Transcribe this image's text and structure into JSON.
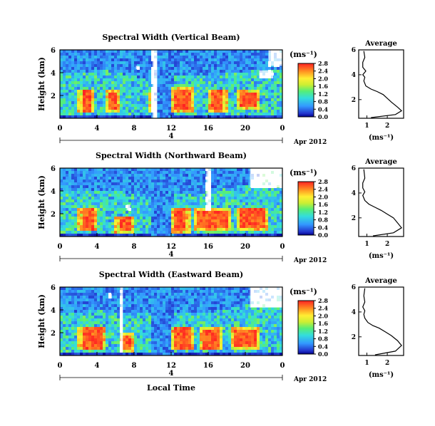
{
  "chart_data": [
    {
      "type": "heatmap",
      "title": "Spectral Width (Vertical Beam)",
      "ylabel": "Height (km)",
      "ylim": [
        0,
        6
      ],
      "xlim": [
        0,
        24
      ],
      "x_ticks": [
        "0",
        "4",
        "8",
        "12",
        "16",
        "20",
        "0"
      ],
      "y_ticks": [
        "2",
        "4",
        "6"
      ],
      "date_marker": "4",
      "date_label": "Apr 2012",
      "colorbar": {
        "unit": "(ms⁻¹)",
        "ticks": [
          "0.0",
          "0.4",
          "0.8",
          "1.2",
          "1.6",
          "2.0",
          "2.4",
          "2.8"
        ],
        "min": 0,
        "max": 2.8
      },
      "ceiling_km": [
        [
          0,
          3.9
        ],
        [
          2,
          3.9
        ],
        [
          4,
          4.3
        ],
        [
          6,
          4.0
        ],
        [
          9,
          3.5
        ],
        [
          12,
          3.7
        ],
        [
          16,
          3.7
        ],
        [
          20,
          4.1
        ],
        [
          24,
          4.4
        ]
      ],
      "red_blocks": [
        [
          2.0,
          3.6,
          0.4,
          2.6
        ],
        [
          5.0,
          6.5,
          0.5,
          2.4
        ],
        [
          9.5,
          10.3,
          0.6,
          2.3
        ],
        [
          12.0,
          14.5,
          0.5,
          2.7
        ],
        [
          16.0,
          18.0,
          0.5,
          2.6
        ],
        [
          19.0,
          21.5,
          0.8,
          2.4
        ]
      ],
      "white_gaps": [
        [
          10.0,
          10.5,
          0,
          6
        ],
        [
          8.2,
          8.6,
          4.3,
          4.6
        ],
        [
          22.5,
          24,
          4.6,
          6
        ],
        [
          21.5,
          23,
          3.5,
          4.2
        ]
      ],
      "average_profile": {
        "title": "Average",
        "xlabel": "(ms⁻¹)",
        "xlim": [
          0.6,
          2.8
        ],
        "ylim": [
          0.5,
          6
        ],
        "x_ticks": [
          "1",
          "2"
        ],
        "y_ticks": [
          "2",
          "4",
          "6"
        ],
        "points": [
          [
            1.2,
            0.55
          ],
          [
            2.4,
            0.8
          ],
          [
            2.7,
            1.1
          ],
          [
            2.5,
            1.4
          ],
          [
            2.2,
            1.8
          ],
          [
            2.0,
            2.1
          ],
          [
            1.8,
            2.4
          ],
          [
            1.5,
            2.65
          ],
          [
            1.2,
            2.85
          ],
          [
            0.95,
            3.1
          ],
          [
            0.85,
            3.5
          ],
          [
            0.9,
            3.8
          ],
          [
            0.8,
            4.0
          ],
          [
            0.95,
            4.3
          ],
          [
            0.8,
            4.6
          ],
          [
            0.8,
            5.0
          ],
          [
            0.9,
            5.4
          ],
          [
            0.85,
            5.9
          ]
        ]
      }
    },
    {
      "type": "heatmap",
      "title": "Spectral Width (Northward Beam)",
      "ylabel": "Height (km)",
      "ylim": [
        0,
        6
      ],
      "xlim": [
        0,
        24
      ],
      "x_ticks": [
        "0",
        "4",
        "8",
        "12",
        "16",
        "20",
        "0"
      ],
      "y_ticks": [
        "2",
        "4",
        "6"
      ],
      "date_marker": "4",
      "date_label": "Apr 2012",
      "colorbar": {
        "unit": "(ms⁻¹)",
        "ticks": [
          "0.0",
          "0.4",
          "0.8",
          "1.2",
          "1.6",
          "2.0",
          "2.4",
          "2.8"
        ],
        "min": 0,
        "max": 2.8
      },
      "ceiling_km": [
        [
          0,
          3.9
        ],
        [
          3,
          3.9
        ],
        [
          6,
          4.0
        ],
        [
          9,
          3.6
        ],
        [
          12,
          3.7
        ],
        [
          16,
          3.9
        ],
        [
          20,
          4.5
        ],
        [
          22,
          5.5
        ],
        [
          24,
          5.8
        ]
      ],
      "red_blocks": [
        [
          2.0,
          4.0,
          0.4,
          2.6
        ],
        [
          6.0,
          8.0,
          0.3,
          1.8
        ],
        [
          12.0,
          14.0,
          0.3,
          2.6
        ],
        [
          14.5,
          18.5,
          0.6,
          2.5
        ],
        [
          19.0,
          22.5,
          0.5,
          2.6
        ]
      ],
      "white_gaps": [
        [
          15.8,
          16.3,
          2.3,
          6
        ],
        [
          7.2,
          7.6,
          2.3,
          2.8
        ],
        [
          20.5,
          24,
          4.3,
          6
        ]
      ],
      "average_profile": {
        "title": "Average",
        "xlabel": "(ms⁻¹)",
        "xlim": [
          0.6,
          2.8
        ],
        "ylim": [
          0.5,
          6
        ],
        "x_ticks": [
          "1",
          "2"
        ],
        "y_ticks": [
          "2",
          "4",
          "6"
        ],
        "points": [
          [
            1.3,
            0.55
          ],
          [
            2.3,
            0.8
          ],
          [
            2.7,
            1.2
          ],
          [
            2.5,
            1.6
          ],
          [
            2.3,
            2.0
          ],
          [
            2.0,
            2.3
          ],
          [
            1.7,
            2.6
          ],
          [
            1.4,
            2.85
          ],
          [
            1.1,
            3.1
          ],
          [
            0.9,
            3.4
          ],
          [
            0.8,
            3.8
          ],
          [
            0.9,
            4.1
          ],
          [
            0.8,
            4.4
          ],
          [
            0.8,
            4.8
          ],
          [
            0.9,
            5.2
          ],
          [
            0.85,
            5.9
          ]
        ]
      }
    },
    {
      "type": "heatmap",
      "title": "Spectral Width (Eastward Beam)",
      "ylabel": "Height (km)",
      "ylim": [
        0,
        6
      ],
      "xlim": [
        0,
        24
      ],
      "x_ticks": [
        "0",
        "4",
        "8",
        "12",
        "16",
        "20",
        "0"
      ],
      "y_ticks": [
        "2",
        "4",
        "6"
      ],
      "date_marker": "4",
      "date_label": "Apr 2012",
      "xlabel": "Local Time",
      "colorbar": {
        "unit": "(ms⁻¹)",
        "ticks": [
          "0.0",
          "0.4",
          "0.8",
          "1.2",
          "1.6",
          "2.0",
          "2.4",
          "2.8"
        ],
        "min": 0,
        "max": 2.8
      },
      "ceiling_km": [
        [
          0,
          3.8
        ],
        [
          4,
          3.9
        ],
        [
          7,
          3.8
        ],
        [
          10,
          3.6
        ],
        [
          12,
          3.7
        ],
        [
          16,
          3.8
        ],
        [
          20,
          4.4
        ],
        [
          22,
          5.2
        ],
        [
          24,
          5.6
        ]
      ],
      "red_blocks": [
        [
          2.0,
          5.0,
          0.4,
          2.6
        ],
        [
          6.5,
          8.0,
          0.3,
          2.0
        ],
        [
          12.0,
          14.5,
          0.4,
          2.6
        ],
        [
          15.0,
          17.5,
          0.4,
          2.5
        ],
        [
          18.5,
          21.5,
          0.6,
          2.4
        ]
      ],
      "white_gaps": [
        [
          6.5,
          6.8,
          0.3,
          6
        ],
        [
          5.3,
          5.6,
          5.0,
          5.4
        ],
        [
          20.5,
          24,
          4.2,
          6
        ]
      ],
      "average_profile": {
        "title": "Average",
        "xlabel": "(ms⁻¹)",
        "xlim": [
          0.6,
          2.8
        ],
        "ylim": [
          0.5,
          6
        ],
        "x_ticks": [
          "1",
          "2"
        ],
        "y_ticks": [
          "2",
          "4",
          "6"
        ],
        "points": [
          [
            1.4,
            0.55
          ],
          [
            2.4,
            0.85
          ],
          [
            2.7,
            1.3
          ],
          [
            2.5,
            1.7
          ],
          [
            2.2,
            2.1
          ],
          [
            1.9,
            2.4
          ],
          [
            1.6,
            2.7
          ],
          [
            1.3,
            2.9
          ],
          [
            1.05,
            3.15
          ],
          [
            0.9,
            3.5
          ],
          [
            0.85,
            3.8
          ],
          [
            0.9,
            4.1
          ],
          [
            0.8,
            4.4
          ],
          [
            0.9,
            4.8
          ],
          [
            0.85,
            5.3
          ],
          [
            0.9,
            5.9
          ]
        ]
      }
    }
  ]
}
